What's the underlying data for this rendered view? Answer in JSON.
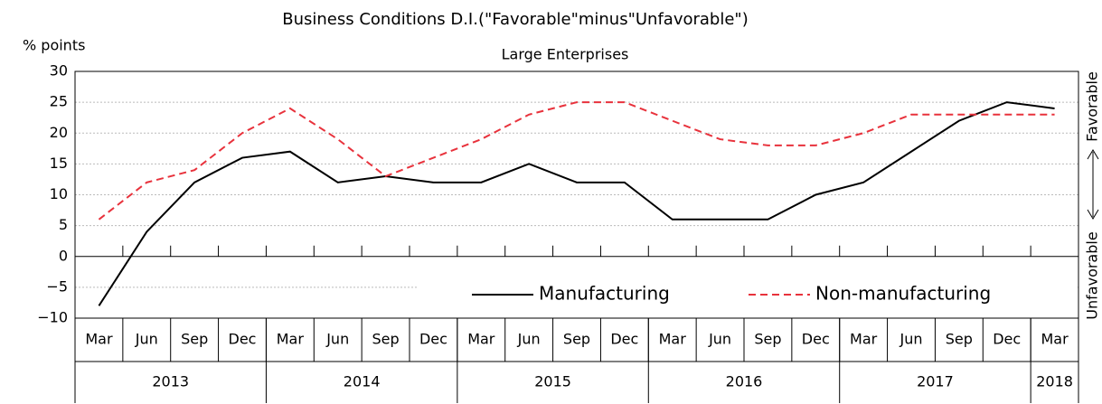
{
  "chart_data": {
    "type": "line",
    "title": "Business Conditions D.I.(\"Favorable\"minus\"Unfavorable\")",
    "subtitle": "Large Enterprises",
    "y_label": "% points",
    "annotations": [
      "Favorable",
      "Unfavorable"
    ],
    "categories": [
      "Mar",
      "Jun",
      "Sep",
      "Dec",
      "Mar",
      "Jun",
      "Sep",
      "Dec",
      "Mar",
      "Jun",
      "Sep",
      "Dec",
      "Mar",
      "Jun",
      "Sep",
      "Dec",
      "Mar",
      "Jun",
      "Sep",
      "Dec",
      "Mar"
    ],
    "years": [
      "2013",
      "2014",
      "2015",
      "2016",
      "2017",
      "2018"
    ],
    "series": [
      {
        "name": "Manufacturing",
        "color": "#000000",
        "dash": false,
        "values": [
          -8,
          4,
          12,
          16,
          17,
          12,
          13,
          12,
          12,
          15,
          12,
          12,
          6,
          6,
          6,
          10,
          12,
          17,
          22,
          25,
          24
        ]
      },
      {
        "name": "Non-manufacturing",
        "color": "#e8323c",
        "dash": true,
        "values": [
          6,
          12,
          14,
          20,
          24,
          19,
          13,
          16,
          19,
          23,
          25,
          25,
          22,
          19,
          18,
          18,
          20,
          23,
          23,
          23,
          23
        ]
      }
    ],
    "ylim": [
      -10,
      30
    ],
    "yticks": [
      {
        "value": -10,
        "label": "−10"
      },
      {
        "value": -5,
        "label": "−5"
      },
      0,
      5,
      10,
      15,
      20,
      25,
      30
    ],
    "grid": true,
    "legend": "lower right"
  }
}
